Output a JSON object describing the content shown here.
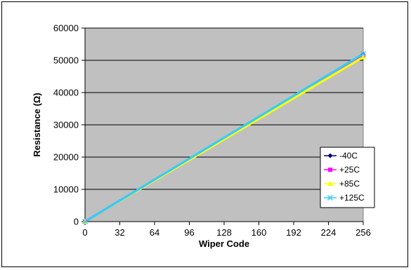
{
  "chart_data": {
    "type": "line",
    "title": "",
    "xlabel": "Wiper Code",
    "ylabel": "Resistance (Ω)",
    "x": [
      0,
      256
    ],
    "xlim": [
      0,
      256
    ],
    "ylim": [
      0,
      60000
    ],
    "xticks": [
      "0",
      "32",
      "64",
      "96",
      "128",
      "160",
      "192",
      "224",
      "256"
    ],
    "yticks": [
      "0",
      "10000",
      "20000",
      "30000",
      "40000",
      "50000",
      "60000"
    ],
    "grid": "horizontal",
    "plot_background": "#c0c0c0",
    "legend_position": "right",
    "series": [
      {
        "name": "-40C",
        "color": "#000080",
        "marker": "diamond",
        "values": [
          0,
          51800
        ]
      },
      {
        "name": "+25C",
        "color": "#ff00ff",
        "marker": "square",
        "values": [
          0,
          51400
        ]
      },
      {
        "name": "+85C",
        "color": "#ffff00",
        "marker": "triangle",
        "values": [
          0,
          51000
        ]
      },
      {
        "name": "+125C",
        "color": "#33ccff",
        "marker": "x",
        "values": [
          0,
          52000
        ]
      }
    ]
  }
}
